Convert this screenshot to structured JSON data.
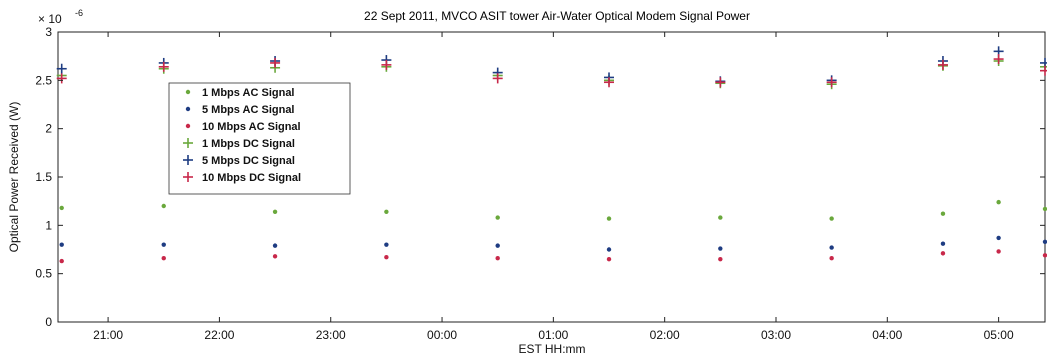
{
  "chart_data": {
    "type": "scatter",
    "title": "22 Sept 2011, MVCO ASIT tower Air-Water Optical Modem Signal Power",
    "xlabel": "EST HH:mm",
    "ylabel": "Optical Power Received (W)",
    "y_multiplier": "× 10",
    "y_exponent": "-6",
    "xlim": [
      "20:33",
      "05:25"
    ],
    "ylim": [
      0,
      3
    ],
    "x_ticks": [
      "21:00",
      "22:00",
      "23:00",
      "00:00",
      "01:00",
      "02:00",
      "03:00",
      "04:00",
      "05:00"
    ],
    "y_ticks": [
      "0",
      "0.5",
      "1",
      "1.5",
      "2",
      "2.5",
      "3"
    ],
    "grid": false,
    "legend_position": "upper-left",
    "legend": [
      "1 Mbps AC Signal",
      "5 Mbps AC Signal",
      "10 Mbps AC Signal",
      "1 Mbps DC Signal",
      "5 Mbps DC Signal",
      "10 Mbps DC Signal"
    ],
    "series_colors": [
      "#6aa83c",
      "#1e3c82",
      "#c8284a",
      "#6aa83c",
      "#1e3c82",
      "#c8284a"
    ],
    "series_markers": [
      "dot",
      "dot",
      "dot",
      "plus",
      "plus",
      "plus"
    ],
    "series": [
      {
        "name": "1 Mbps AC Signal",
        "x": [
          "20:35",
          "21:30",
          "22:30",
          "23:30",
          "00:30",
          "01:30",
          "02:30",
          "03:30",
          "04:30",
          "05:00",
          "05:25"
        ],
        "y": [
          1.18,
          1.2,
          1.14,
          1.14,
          1.08,
          1.07,
          1.08,
          1.07,
          1.12,
          1.24,
          1.17
        ]
      },
      {
        "name": "5 Mbps AC Signal",
        "x": [
          "20:35",
          "21:30",
          "22:30",
          "23:30",
          "00:30",
          "01:30",
          "02:30",
          "03:30",
          "04:30",
          "05:00",
          "05:25"
        ],
        "y": [
          0.8,
          0.8,
          0.79,
          0.8,
          0.79,
          0.75,
          0.76,
          0.77,
          0.81,
          0.87,
          0.83
        ]
      },
      {
        "name": "10 Mbps AC Signal",
        "x": [
          "20:35",
          "21:30",
          "22:30",
          "23:30",
          "00:30",
          "01:30",
          "02:30",
          "03:30",
          "04:30",
          "05:00",
          "05:25"
        ],
        "y": [
          0.63,
          0.66,
          0.68,
          0.67,
          0.66,
          0.65,
          0.65,
          0.66,
          0.71,
          0.73,
          0.69
        ]
      },
      {
        "name": "1 Mbps DC Signal",
        "x": [
          "20:35",
          "21:30",
          "22:30",
          "23:30",
          "00:30",
          "01:30",
          "02:30",
          "03:30",
          "04:30",
          "05:00",
          "05:25"
        ],
        "y": [
          2.55,
          2.62,
          2.63,
          2.64,
          2.55,
          2.5,
          2.47,
          2.46,
          2.65,
          2.7,
          2.64
        ]
      },
      {
        "name": "5 Mbps DC Signal",
        "x": [
          "20:35",
          "21:30",
          "22:30",
          "23:30",
          "00:30",
          "01:30",
          "02:30",
          "03:30",
          "04:30",
          "05:00",
          "05:25"
        ],
        "y": [
          2.62,
          2.68,
          2.7,
          2.71,
          2.58,
          2.53,
          2.49,
          2.5,
          2.7,
          2.8,
          2.68
        ]
      },
      {
        "name": "10 Mbps DC Signal",
        "x": [
          "20:35",
          "21:30",
          "22:30",
          "23:30",
          "00:30",
          "01:30",
          "02:30",
          "03:30",
          "04:30",
          "05:00",
          "05:25"
        ],
        "y": [
          2.52,
          2.64,
          2.68,
          2.66,
          2.52,
          2.48,
          2.48,
          2.48,
          2.66,
          2.72,
          2.6
        ]
      }
    ]
  }
}
